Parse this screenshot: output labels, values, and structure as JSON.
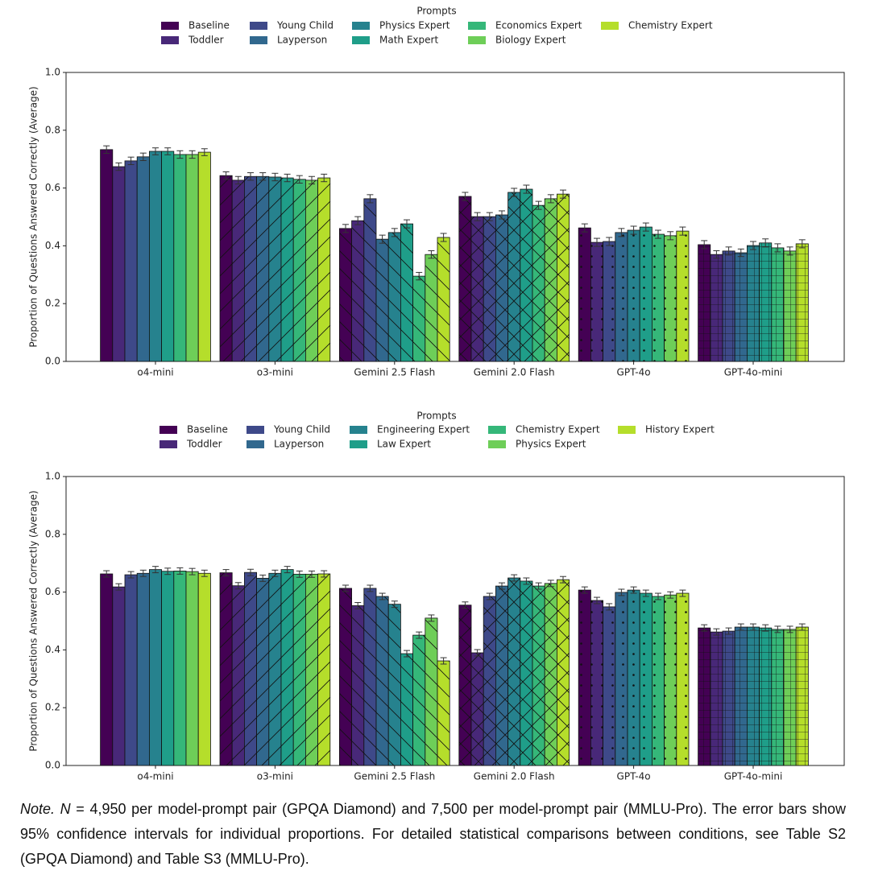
{
  "chart_data": [
    {
      "type": "bar",
      "legend_title": "Prompts",
      "ylabel": "Proportion of Questions Answered Correctly (Average)",
      "categories": [
        "o4-mini",
        "o3-mini",
        "Gemini 2.5 Flash",
        "Gemini 2.0 Flash",
        "GPT-4o",
        "GPT-4o-mini"
      ],
      "hatches": [
        "none",
        "diagonal",
        "back-diagonal",
        "cross",
        "dots",
        "grid"
      ],
      "ylim": [
        0,
        1
      ],
      "yticks": [
        {
          "value": 0,
          "label": "0.0"
        },
        0.2,
        0.4,
        0.6,
        0.8,
        {
          "value": 1,
          "label": "1.0"
        }
      ],
      "series": [
        {
          "name": "Baseline",
          "color": "#440154",
          "values": [
            0.733,
            0.643,
            0.46,
            0.571,
            0.462,
            0.404
          ],
          "errors": [
            0.013,
            0.013,
            0.014,
            0.014,
            0.014,
            0.014
          ]
        },
        {
          "name": "Toddler",
          "color": "#482878",
          "values": [
            0.674,
            0.627,
            0.487,
            0.501,
            0.412,
            0.37
          ],
          "errors": [
            0.013,
            0.013,
            0.014,
            0.014,
            0.014,
            0.013
          ]
        },
        {
          "name": "Young Child",
          "color": "#3e4989",
          "values": [
            0.694,
            0.64,
            0.563,
            0.501,
            0.415,
            0.382
          ],
          "errors": [
            0.013,
            0.013,
            0.014,
            0.014,
            0.014,
            0.014
          ]
        },
        {
          "name": "Layperson",
          "color": "#31688e",
          "values": [
            0.708,
            0.64,
            0.423,
            0.507,
            0.446,
            0.376
          ],
          "errors": [
            0.013,
            0.013,
            0.014,
            0.014,
            0.014,
            0.013
          ]
        },
        {
          "name": "Physics Expert",
          "color": "#26828e",
          "values": [
            0.727,
            0.638,
            0.446,
            0.585,
            0.454,
            0.401
          ],
          "errors": [
            0.012,
            0.013,
            0.014,
            0.014,
            0.014,
            0.014
          ]
        },
        {
          "name": "Math Expert",
          "color": "#1f9e89",
          "values": [
            0.727,
            0.635,
            0.476,
            0.596,
            0.465,
            0.41
          ],
          "errors": [
            0.012,
            0.013,
            0.014,
            0.014,
            0.014,
            0.014
          ]
        },
        {
          "name": "Economics Expert",
          "color": "#35b779",
          "values": [
            0.716,
            0.63,
            0.295,
            0.54,
            0.44,
            0.393
          ],
          "errors": [
            0.013,
            0.013,
            0.013,
            0.014,
            0.014,
            0.014
          ]
        },
        {
          "name": "Biology Expert",
          "color": "#6ece58",
          "values": [
            0.716,
            0.627,
            0.37,
            0.563,
            0.435,
            0.382
          ],
          "errors": [
            0.013,
            0.013,
            0.013,
            0.014,
            0.014,
            0.014
          ]
        },
        {
          "name": "Chemistry Expert",
          "color": "#b5de2b",
          "values": [
            0.724,
            0.635,
            0.429,
            0.579,
            0.451,
            0.407
          ],
          "errors": [
            0.012,
            0.013,
            0.014,
            0.014,
            0.014,
            0.014
          ]
        }
      ]
    },
    {
      "type": "bar",
      "legend_title": "Prompts",
      "ylabel": "Proportion of Questions Answered Correctly (Average)",
      "categories": [
        "o4-mini",
        "o3-mini",
        "Gemini 2.5 Flash",
        "Gemini 2.0 Flash",
        "GPT-4o",
        "GPT-4o-mini"
      ],
      "hatches": [
        "none",
        "diagonal",
        "back-diagonal",
        "cross",
        "dots",
        "grid"
      ],
      "ylim": [
        0,
        1
      ],
      "yticks": [
        {
          "value": 0,
          "label": "0.0"
        },
        0.2,
        0.4,
        0.6,
        0.8,
        {
          "value": 1,
          "label": "1.0"
        }
      ],
      "series": [
        {
          "name": "Baseline",
          "color": "#440154",
          "values": [
            0.663,
            0.667,
            0.613,
            0.555,
            0.607,
            0.476
          ],
          "errors": [
            0.011,
            0.011,
            0.011,
            0.011,
            0.011,
            0.011
          ]
        },
        {
          "name": "Toddler",
          "color": "#482878",
          "values": [
            0.618,
            0.622,
            0.553,
            0.39,
            0.571,
            0.462
          ],
          "errors": [
            0.011,
            0.011,
            0.011,
            0.011,
            0.011,
            0.011
          ]
        },
        {
          "name": "Young Child",
          "color": "#3e4989",
          "values": [
            0.66,
            0.668,
            0.613,
            0.585,
            0.549,
            0.465
          ],
          "errors": [
            0.011,
            0.011,
            0.011,
            0.011,
            0.011,
            0.011
          ]
        },
        {
          "name": "Layperson",
          "color": "#31688e",
          "values": [
            0.665,
            0.648,
            0.585,
            0.621,
            0.599,
            0.479
          ],
          "errors": [
            0.011,
            0.011,
            0.011,
            0.011,
            0.011,
            0.011
          ]
        },
        {
          "name": "Engineering Expert",
          "color": "#26828e",
          "values": [
            0.678,
            0.665,
            0.558,
            0.649,
            0.607,
            0.479
          ],
          "errors": [
            0.011,
            0.011,
            0.011,
            0.011,
            0.011,
            0.011
          ]
        },
        {
          "name": "Law Expert",
          "color": "#1f9e89",
          "values": [
            0.672,
            0.678,
            0.387,
            0.638,
            0.596,
            0.476
          ],
          "errors": [
            0.011,
            0.011,
            0.011,
            0.011,
            0.011,
            0.011
          ]
        },
        {
          "name": "Chemistry Expert",
          "color": "#35b779",
          "values": [
            0.673,
            0.662,
            0.451,
            0.621,
            0.585,
            0.471
          ],
          "errors": [
            0.011,
            0.011,
            0.011,
            0.011,
            0.011,
            0.011
          ]
        },
        {
          "name": "Physics Expert",
          "color": "#6ece58",
          "values": [
            0.671,
            0.662,
            0.51,
            0.63,
            0.59,
            0.471
          ],
          "errors": [
            0.011,
            0.011,
            0.011,
            0.011,
            0.011,
            0.011
          ]
        },
        {
          "name": "History Expert",
          "color": "#b5de2b",
          "values": [
            0.665,
            0.663,
            0.362,
            0.643,
            0.596,
            0.479
          ],
          "errors": [
            0.011,
            0.011,
            0.011,
            0.011,
            0.011,
            0.011
          ]
        }
      ]
    }
  ],
  "note": {
    "lead": "Note.",
    "n": "N",
    "text": " = 4,950 per model-prompt pair (GPQA Diamond) and 7,500 per model-prompt pair (MMLU-Pro). The error bars show 95% confidence intervals for individual proportions. For detailed statistical comparisons between conditions, see Table S2 (GPQA Diamond) and Table S3 (MMLU-Pro)."
  }
}
